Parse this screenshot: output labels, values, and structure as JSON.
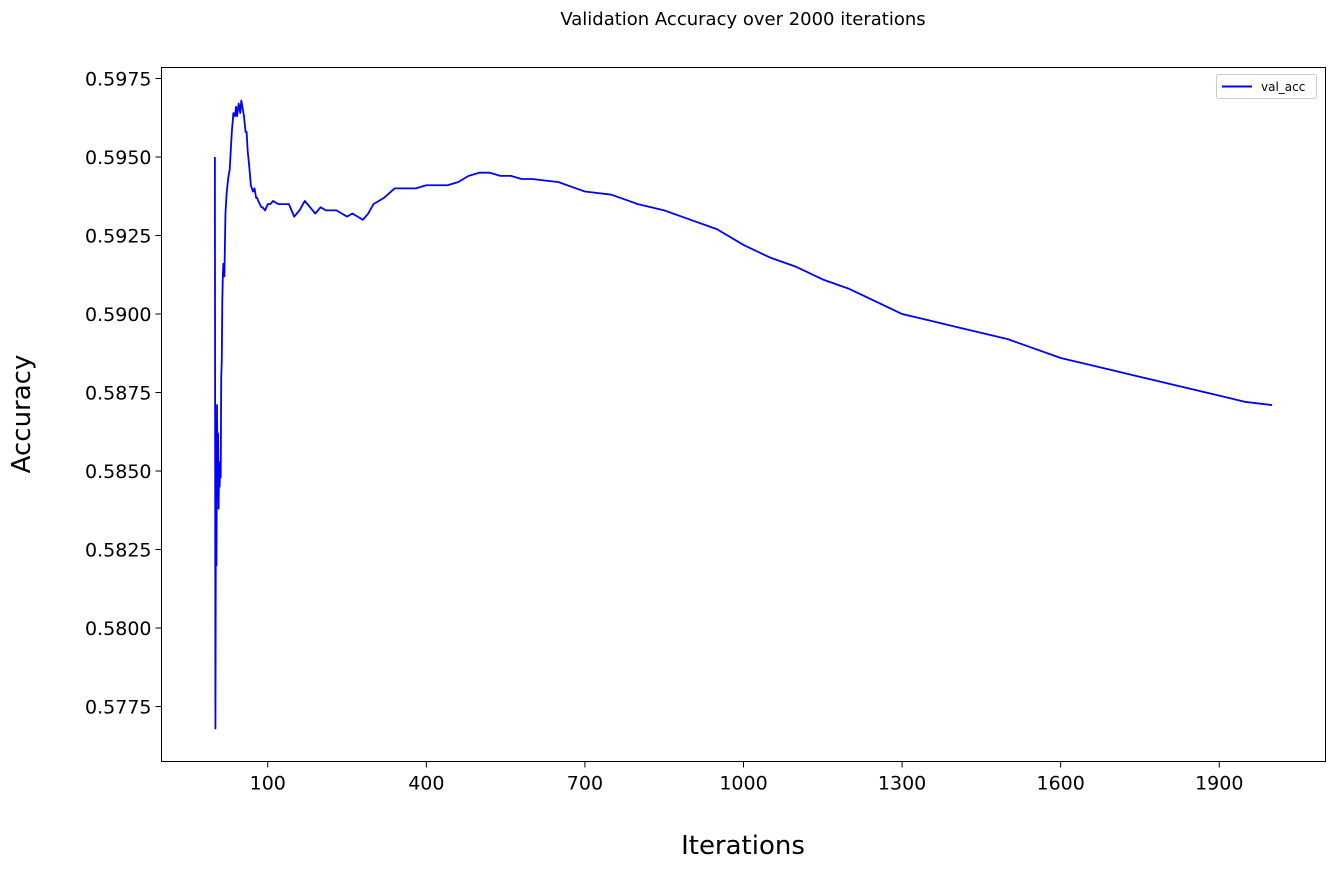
{
  "chart_data": {
    "type": "line",
    "title": "Validation Accuracy over 2000 iterations",
    "xlabel": "Iterations",
    "ylabel": "Accuracy",
    "xlim": [
      -101,
      2101
    ],
    "ylim": [
      0.57575,
      0.59785
    ],
    "xticks": [
      100,
      400,
      700,
      1000,
      1300,
      1600,
      1900
    ],
    "yticks": [
      0.5775,
      0.58,
      0.5825,
      0.585,
      0.5875,
      0.59,
      0.5925,
      0.595,
      0.5975
    ],
    "ytick_labels": [
      "0.5775",
      "0.5800",
      "0.5825",
      "0.5850",
      "0.5875",
      "0.5900",
      "0.5925",
      "0.5950",
      "0.5975"
    ],
    "grid": false,
    "legend": "top-right",
    "series": [
      {
        "name": "val_acc",
        "color": "#0000ff",
        "x": [
          0,
          1,
          2,
          3,
          4,
          5,
          6,
          7,
          8,
          9,
          10,
          11,
          12,
          13,
          14,
          15,
          16,
          18,
          20,
          22,
          25,
          28,
          30,
          32,
          35,
          38,
          40,
          42,
          45,
          48,
          50,
          52,
          55,
          58,
          60,
          62,
          65,
          68,
          70,
          72,
          75,
          78,
          80,
          82,
          85,
          88,
          90,
          95,
          100,
          105,
          110,
          120,
          130,
          140,
          150,
          160,
          170,
          180,
          190,
          200,
          210,
          220,
          230,
          240,
          250,
          260,
          270,
          280,
          290,
          300,
          320,
          340,
          360,
          380,
          400,
          420,
          440,
          460,
          480,
          500,
          520,
          540,
          560,
          580,
          600,
          650,
          700,
          750,
          800,
          850,
          900,
          950,
          1000,
          1050,
          1100,
          1150,
          1200,
          1250,
          1300,
          1350,
          1400,
          1450,
          1500,
          1550,
          1600,
          1650,
          1700,
          1750,
          1800,
          1850,
          1900,
          1950,
          2000
        ],
        "values": [
          0.595,
          0.5768,
          0.585,
          0.582,
          0.5871,
          0.585,
          0.5862,
          0.5838,
          0.5852,
          0.5845,
          0.5853,
          0.5848,
          0.588,
          0.5885,
          0.5904,
          0.5912,
          0.5916,
          0.5912,
          0.5932,
          0.5938,
          0.5943,
          0.5946,
          0.5952,
          0.5958,
          0.5964,
          0.5963,
          0.5966,
          0.5963,
          0.5967,
          0.5964,
          0.5968,
          0.5966,
          0.5963,
          0.5958,
          0.5958,
          0.5952,
          0.5947,
          0.5941,
          0.594,
          0.5939,
          0.594,
          0.5937,
          0.5937,
          0.5936,
          0.5935,
          0.5934,
          0.5934,
          0.5933,
          0.5935,
          0.5935,
          0.5936,
          0.5935,
          0.5935,
          0.5935,
          0.5931,
          0.5933,
          0.5936,
          0.5934,
          0.5932,
          0.5934,
          0.5933,
          0.5933,
          0.5933,
          0.5932,
          0.5931,
          0.5932,
          0.5931,
          0.593,
          0.5932,
          0.5935,
          0.5937,
          0.594,
          0.594,
          0.594,
          0.5941,
          0.5941,
          0.5941,
          0.5942,
          0.5944,
          0.5945,
          0.5945,
          0.5944,
          0.5944,
          0.5943,
          0.5943,
          0.5942,
          0.5939,
          0.5938,
          0.5935,
          0.5933,
          0.593,
          0.5927,
          0.5922,
          0.5918,
          0.5915,
          0.5911,
          0.5908,
          0.5904,
          0.59,
          0.5898,
          0.5896,
          0.5894,
          0.5892,
          0.5889,
          0.5886,
          0.5884,
          0.5882,
          0.588,
          0.5878,
          0.5876,
          0.5874,
          0.5872,
          0.5871
        ]
      }
    ]
  }
}
